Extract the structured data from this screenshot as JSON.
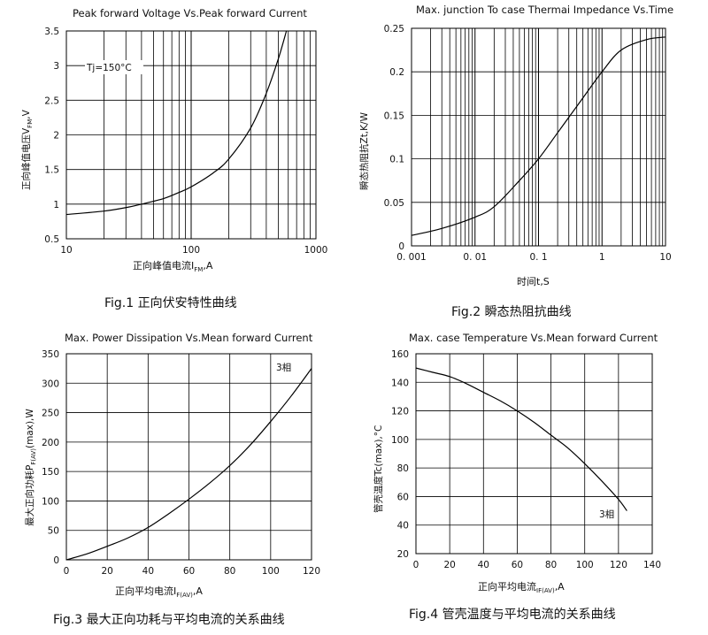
{
  "chart_data": [
    {
      "id": "fig1",
      "type": "line",
      "title": "Peak forward Voltage Vs.Peak forward Current",
      "xlabel": "正向峰值电流I_FM,A",
      "ylabel": "正向峰值电压V_FM,V",
      "xscale": "log",
      "xlim": [
        10,
        1000
      ],
      "ylim": [
        0.5,
        3.5
      ],
      "xticks": [
        "10",
        "100",
        "1000"
      ],
      "yticks": [
        "0.5",
        "1",
        "1.5",
        "2",
        "2.5",
        "3",
        "3.5"
      ],
      "annotation": "Tj=150°C",
      "grid": true,
      "series": [
        {
          "x": [
            10,
            20,
            30,
            40,
            60,
            80,
            100,
            150,
            200,
            300,
            400,
            500,
            580
          ],
          "y": [
            0.85,
            0.9,
            0.95,
            1.0,
            1.08,
            1.17,
            1.25,
            1.45,
            1.65,
            2.1,
            2.6,
            3.1,
            3.5
          ]
        }
      ],
      "caption": "Fig.1 正向伏安特性曲线"
    },
    {
      "id": "fig2",
      "type": "line",
      "title": "Max. junction To case Thermai Impedance Vs.Time",
      "xlabel": "时间t,S",
      "ylabel": "瞬态热阻抗Zt,K/W",
      "xscale": "log",
      "xlim": [
        0.001,
        10
      ],
      "ylim": [
        0,
        0.25
      ],
      "xticks": [
        "0. 001",
        "0. 01",
        "0. 1",
        "1",
        "10"
      ],
      "yticks": [
        "0",
        "0.05",
        "0.1",
        "0.15",
        "0.2",
        "0.25"
      ],
      "grid": true,
      "series": [
        {
          "x": [
            0.001,
            0.003,
            0.01,
            0.02,
            0.05,
            0.1,
            0.2,
            0.5,
            1,
            2,
            5,
            10
          ],
          "y": [
            0.012,
            0.02,
            0.033,
            0.045,
            0.075,
            0.1,
            0.13,
            0.17,
            0.2,
            0.225,
            0.237,
            0.24
          ]
        }
      ],
      "caption": "Fig.2 瞬态热阻抗曲线"
    },
    {
      "id": "fig3",
      "type": "line",
      "title": "Max. Power Dissipation Vs.Mean forward Current",
      "xlabel": "正向平均电流I_F(AV),A",
      "ylabel": "最大正向功耗P_F(AV)(max),W",
      "xlim": [
        0,
        120
      ],
      "ylim": [
        0,
        350
      ],
      "xticks": [
        "0",
        "20",
        "40",
        "60",
        "80",
        "100",
        "120"
      ],
      "yticks": [
        "0",
        "50",
        "100",
        "150",
        "200",
        "250",
        "300",
        "350"
      ],
      "annotation": "3相",
      "grid": true,
      "series": [
        {
          "x": [
            0,
            10,
            20,
            30,
            40,
            50,
            60,
            70,
            80,
            90,
            100,
            110,
            120
          ],
          "y": [
            0,
            10,
            23,
            37,
            55,
            78,
            103,
            130,
            160,
            195,
            235,
            278,
            325
          ]
        }
      ],
      "caption": "Fig.3 最大正向功耗与平均电流的关系曲线"
    },
    {
      "id": "fig4",
      "type": "line",
      "title": "Max. case Temperature Vs.Mean forward Current",
      "xlabel": "正向平均电流_IF(AV),A",
      "ylabel": "管壳温度Tc(max),°C",
      "xlim": [
        0,
        140
      ],
      "ylim": [
        20,
        160
      ],
      "xticks": [
        "0",
        "20",
        "40",
        "60",
        "80",
        "100",
        "120",
        "140"
      ],
      "yticks": [
        "20",
        "40",
        "60",
        "80",
        "100",
        "120",
        "140",
        "160"
      ],
      "annotation": "3相",
      "grid": true,
      "series": [
        {
          "x": [
            0,
            10,
            20,
            30,
            40,
            50,
            60,
            70,
            80,
            90,
            100,
            110,
            120,
            125
          ],
          "y": [
            150,
            147,
            144,
            139,
            133,
            127,
            120,
            112,
            103,
            94,
            83,
            71,
            58,
            50
          ]
        }
      ],
      "caption": "Fig.4 管壳温度与平均电流的关系曲线"
    }
  ]
}
